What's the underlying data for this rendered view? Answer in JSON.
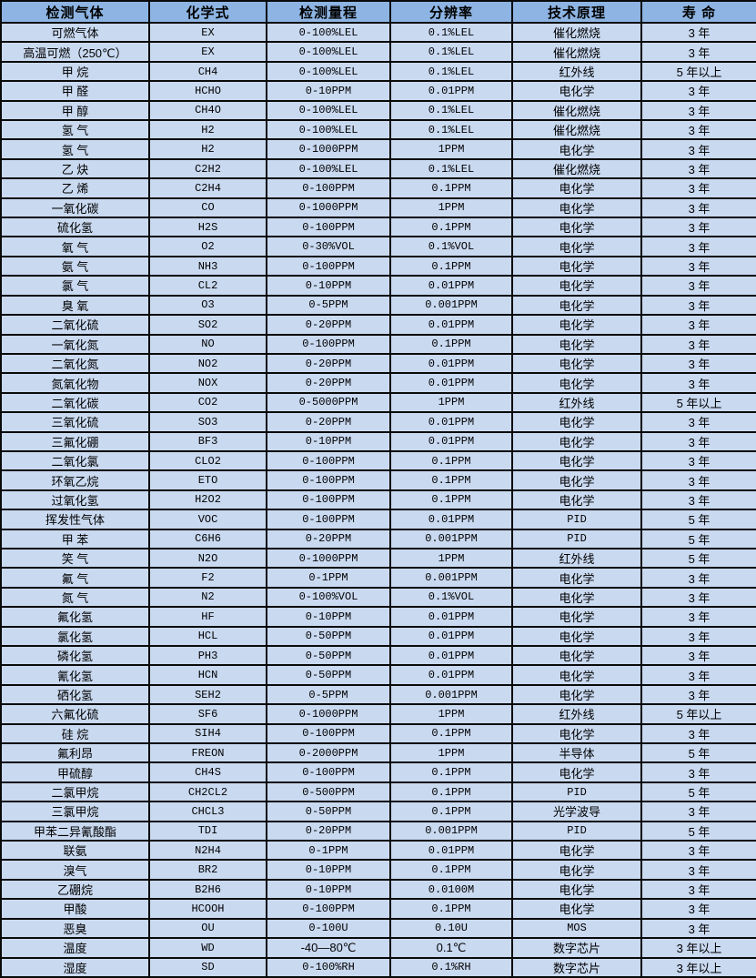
{
  "table": {
    "column_keys": [
      "gas",
      "formula",
      "range",
      "resolution",
      "principle",
      "lifespan"
    ],
    "headers": [
      "检测气体",
      "化学式",
      "检测量程",
      "分辨率",
      "技术原理",
      "寿 命"
    ],
    "rows": [
      [
        "可燃气体",
        "EX",
        "0-100%LEL",
        "0.1%LEL",
        "催化燃烧",
        "3 年"
      ],
      [
        "高温可燃（250℃）",
        "EX",
        "0-100%LEL",
        "0.1%LEL",
        "催化燃烧",
        "3 年"
      ],
      [
        "甲 烷",
        "CH4",
        "0-100%LEL",
        "0.1%LEL",
        "红外线",
        "5 年以上"
      ],
      [
        "甲 醛",
        "HCHO",
        "0-10PPM",
        "0.01PPM",
        "电化学",
        "3 年"
      ],
      [
        "甲 醇",
        "CH4O",
        "0-100%LEL",
        "0.1%LEL",
        "催化燃烧",
        "3 年"
      ],
      [
        "氢 气",
        "H2",
        "0-100%LEL",
        "0.1%LEL",
        "催化燃烧",
        "3 年"
      ],
      [
        "氢 气",
        "H2",
        "0-1000PPM",
        "1PPM",
        "电化学",
        "3 年"
      ],
      [
        "乙 炔",
        "C2H2",
        "0-100%LEL",
        "0.1%LEL",
        "催化燃烧",
        "3 年"
      ],
      [
        "乙 烯",
        "C2H4",
        "0-100PPM",
        "0.1PPM",
        "电化学",
        "3 年"
      ],
      [
        "一氧化碳",
        "CO",
        "0-1000PPM",
        "1PPM",
        "电化学",
        "3 年"
      ],
      [
        "硫化氢",
        "H2S",
        "0-100PPM",
        "0.1PPM",
        "电化学",
        "3 年"
      ],
      [
        "氧 气",
        "O2",
        "0-30%VOL",
        "0.1%VOL",
        "电化学",
        "3 年"
      ],
      [
        "氨 气",
        "NH3",
        "0-100PPM",
        "0.1PPM",
        "电化学",
        "3 年"
      ],
      [
        "氯 气",
        "CL2",
        "0-10PPM",
        "0.01PPM",
        "电化学",
        "3 年"
      ],
      [
        "臭 氧",
        "O3",
        "0-5PPM",
        "0.001PPM",
        "电化学",
        "3 年"
      ],
      [
        "二氧化硫",
        "SO2",
        "0-20PPM",
        "0.01PPM",
        "电化学",
        "3 年"
      ],
      [
        "一氧化氮",
        "NO",
        "0-100PPM",
        "0.1PPM",
        "电化学",
        "3 年"
      ],
      [
        "二氧化氮",
        "NO2",
        "0-20PPM",
        "0.01PPM",
        "电化学",
        "3 年"
      ],
      [
        "氮氧化物",
        "NOX",
        "0-20PPM",
        "0.01PPM",
        "电化学",
        "3 年"
      ],
      [
        "二氧化碳",
        "CO2",
        "0-5000PPM",
        "1PPM",
        "红外线",
        "5 年以上"
      ],
      [
        "三氧化硫",
        "SO3",
        "0-20PPM",
        "0.01PPM",
        "电化学",
        "3 年"
      ],
      [
        "三氟化硼",
        "BF3",
        "0-10PPM",
        "0.01PPM",
        "电化学",
        "3 年"
      ],
      [
        "二氧化氯",
        "CLO2",
        "0-100PPM",
        "0.1PPM",
        "电化学",
        "3 年"
      ],
      [
        "环氧乙烷",
        "ETO",
        "0-100PPM",
        "0.1PPM",
        "电化学",
        "3 年"
      ],
      [
        "过氧化氢",
        "H2O2",
        "0-100PPM",
        "0.1PPM",
        "电化学",
        "3 年"
      ],
      [
        "挥发性气体",
        "VOC",
        "0-100PPM",
        "0.01PPM",
        "PID",
        "5 年"
      ],
      [
        "甲 苯",
        "C6H6",
        "0-20PPM",
        "0.001PPM",
        "PID",
        "5 年"
      ],
      [
        "笑 气",
        "N2O",
        "0-1000PPM",
        "1PPM",
        "红外线",
        "5 年"
      ],
      [
        "氟 气",
        "F2",
        "0-1PPM",
        "0.001PPM",
        "电化学",
        "3 年"
      ],
      [
        "氮 气",
        "N2",
        "0-100%VOL",
        "0.1%VOL",
        "电化学",
        "3 年"
      ],
      [
        "氟化氢",
        "HF",
        "0-10PPM",
        "0.01PPM",
        "电化学",
        "3 年"
      ],
      [
        "氯化氢",
        "HCL",
        "0-50PPM",
        "0.01PPM",
        "电化学",
        "3 年"
      ],
      [
        "磷化氢",
        "PH3",
        "0-50PPM",
        "0.01PPM",
        "电化学",
        "3 年"
      ],
      [
        "氰化氢",
        "HCN",
        "0-50PPM",
        "0.01PPM",
        "电化学",
        "3 年"
      ],
      [
        "硒化氢",
        "SEH2",
        "0-5PPM",
        "0.001PPM",
        "电化学",
        "3 年"
      ],
      [
        "六氟化硫",
        "SF6",
        "0-1000PPM",
        "1PPM",
        "红外线",
        "5 年以上"
      ],
      [
        "硅 烷",
        "SIH4",
        "0-100PPM",
        "0.1PPM",
        "电化学",
        "3 年"
      ],
      [
        "氟利昂",
        "FREON",
        "0-2000PPM",
        "1PPM",
        "半导体",
        "5 年"
      ],
      [
        "甲硫醇",
        "CH4S",
        "0-100PPM",
        "0.1PPM",
        "电化学",
        "3 年"
      ],
      [
        "二氯甲烷",
        "CH2CL2",
        "0-500PPM",
        "0.1PPM",
        "PID",
        "5 年"
      ],
      [
        "三氯甲烷",
        "CHCL3",
        "0-50PPM",
        "0.1PPM",
        "光学波导",
        "3 年"
      ],
      [
        "甲苯二异氰酸酯",
        "TDI",
        "0-20PPM",
        "0.001PPM",
        "PID",
        "5 年"
      ],
      [
        "联氨",
        "N2H4",
        "0-1PPM",
        "0.01PPM",
        "电化学",
        "3 年"
      ],
      [
        "溴气",
        "BR2",
        "0-10PPM",
        "0.1PPM",
        "电化学",
        "3 年"
      ],
      [
        "乙硼烷",
        "B2H6",
        "0-10PPM",
        "0.0100M",
        "电化学",
        "3 年"
      ],
      [
        "甲酸",
        "HCOOH",
        "0-100PPM",
        "0.1PPM",
        "电化学",
        "3 年"
      ],
      [
        "恶臭",
        "OU",
        "0-100U",
        "0.10U",
        "MOS",
        "3 年"
      ],
      [
        "温度",
        "WD",
        "-40—80℃",
        "0.1℃",
        "数字芯片",
        "3 年以上"
      ],
      [
        "湿度",
        "SD",
        "0-100%RH",
        "0.1%RH",
        "数字芯片",
        "3 年以上"
      ]
    ]
  },
  "colors": {
    "header_bg": "#8db4e2",
    "row_bg": "#c9d9f0",
    "border": "#0a0a0a",
    "text": "#000000"
  }
}
